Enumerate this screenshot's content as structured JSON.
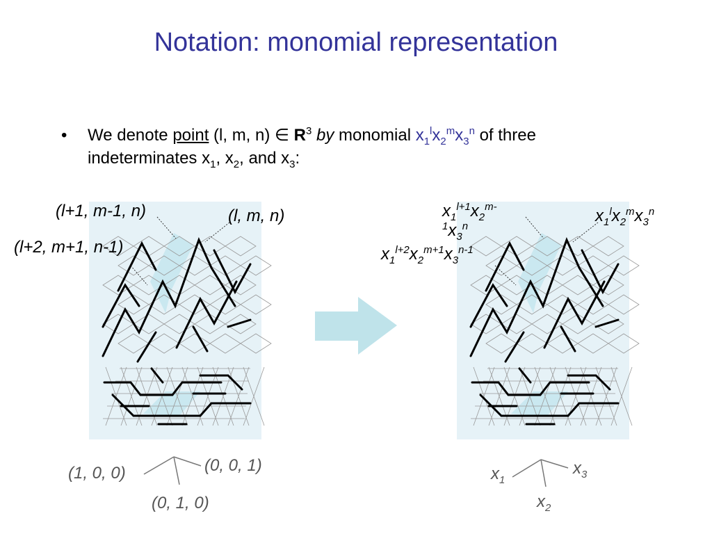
{
  "slide": {
    "title": "Notation: monomial representation",
    "bullet": {
      "marker": "•",
      "t1": "We denote ",
      "point": "point",
      "t2": " (l, m, n) ",
      "elem": "∈",
      "R": "R",
      "R_sup": "3",
      "by": " by",
      "t3": " monomial ",
      "x1": "x",
      "s1": "1",
      "l": "l",
      "x2": "x",
      "s2": "2",
      "m": "m",
      "x3": "x",
      "s3": "3",
      "n": "n",
      "t4": " of three",
      "t5": "indeterminates x",
      "i1": "1",
      "t6": ", x",
      "i2": "2",
      "t7": ", and x",
      "i3": "3",
      "t8": ":"
    }
  },
  "left": {
    "label_a": "(l+1, m-1, n)",
    "label_b": "(l, m, n)",
    "label_c": "(l+2, m+1, n-1)",
    "axis_x1": "(1, 0, 0)",
    "axis_x3": "(0, 0, 1)",
    "axis_x2": "(0, 1, 0)"
  },
  "right": {
    "lab_a": {
      "x1": "x",
      "s1": "1",
      "e1": "l+1",
      "x2": "x",
      "s2": "2",
      "e2": "m-",
      "e2b": "1",
      "x3": "x",
      "s3": "3",
      "e3": "n"
    },
    "lab_b": {
      "x1": "x",
      "s1": "1",
      "e1": "l",
      "x2": "x",
      "s2": "2",
      "e2": "m",
      "x3": "x",
      "s3": "3",
      "e3": "n"
    },
    "lab_c": {
      "x1": "x",
      "s1": "1",
      "e1": "l+2",
      "x2": "x",
      "s2": "2",
      "e2": "m+1",
      "x3": "x",
      "s3": "3",
      "e3": "n-1"
    },
    "axis_x1": {
      "x": "x",
      "s": "1"
    },
    "axis_x3": {
      "x": "x",
      "s": "3"
    },
    "axis_x2": {
      "x": "x",
      "s": "2"
    }
  },
  "colors": {
    "title": "#333399",
    "panel": "#e6f2f7",
    "arrow": "#bfe3ea",
    "highlight": "#c7e7ee"
  }
}
